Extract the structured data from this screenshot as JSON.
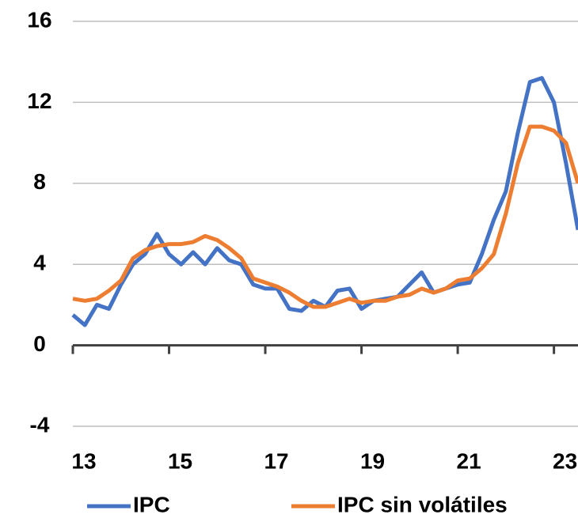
{
  "chart_data": {
    "type": "line",
    "x": [
      13,
      13.25,
      13.5,
      13.75,
      14,
      14.25,
      14.5,
      14.75,
      15,
      15.25,
      15.5,
      15.75,
      16,
      16.25,
      16.5,
      16.75,
      17,
      17.25,
      17.5,
      17.75,
      18,
      18.25,
      18.5,
      18.75,
      19,
      19.25,
      19.5,
      19.75,
      20,
      20.25,
      20.5,
      20.75,
      21,
      21.25,
      21.5,
      21.75,
      22,
      22.25,
      22.5,
      22.75,
      23,
      23.25,
      23.5
    ],
    "series": [
      {
        "name": "IPC",
        "color": "#4472c4",
        "values": [
          1.5,
          1.0,
          2.0,
          1.8,
          3.0,
          4.0,
          4.5,
          5.5,
          4.5,
          4.0,
          4.6,
          4.0,
          4.8,
          4.2,
          4.0,
          3.0,
          2.8,
          2.8,
          1.8,
          1.7,
          2.2,
          1.9,
          2.7,
          2.8,
          1.8,
          2.2,
          2.3,
          2.4,
          3.0,
          3.6,
          2.6,
          2.8,
          3.0,
          3.1,
          4.5,
          6.2,
          7.6,
          10.5,
          13.0,
          13.2,
          12.0,
          9.0,
          5.7
        ]
      },
      {
        "name": "IPC sin volátiles",
        "color": "#ed7d31",
        "values": [
          2.3,
          2.2,
          2.3,
          2.7,
          3.2,
          4.3,
          4.7,
          4.9,
          5.0,
          5.0,
          5.1,
          5.4,
          5.2,
          4.8,
          4.3,
          3.3,
          3.1,
          2.9,
          2.6,
          2.2,
          1.9,
          1.9,
          2.1,
          2.3,
          2.1,
          2.2,
          2.2,
          2.4,
          2.5,
          2.8,
          2.6,
          2.8,
          3.2,
          3.3,
          3.8,
          4.5,
          6.5,
          9.0,
          10.8,
          10.8,
          10.6,
          10.0,
          8.0
        ]
      }
    ],
    "xlim": [
      13,
      23.5
    ],
    "xticks": [
      13,
      15,
      17,
      19,
      21,
      23
    ],
    "ylim": [
      -4,
      16
    ],
    "yticks": [
      -4,
      0,
      4,
      8,
      12,
      16
    ],
    "grid": true,
    "legend": "bottom"
  }
}
